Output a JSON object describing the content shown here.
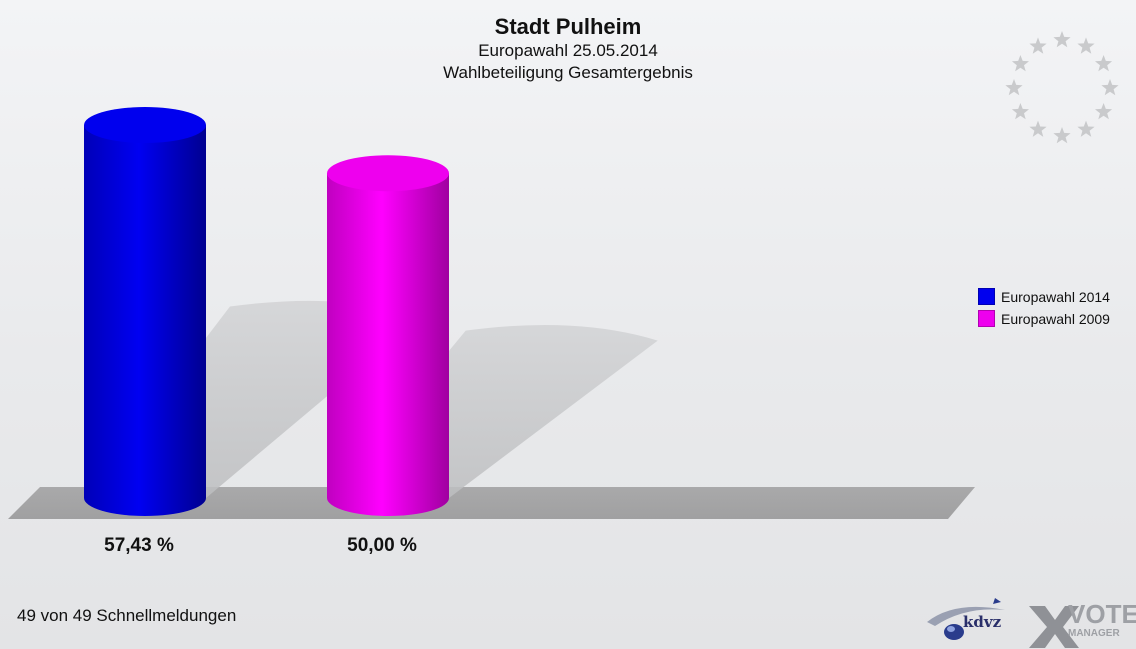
{
  "header": {
    "title": "Stadt Pulheim",
    "subtitle_1": "Europawahl 25.05.2014",
    "subtitle_2": "Wahlbeteiligung Gesamtergebnis"
  },
  "chart_data": {
    "type": "bar",
    "title": "Stadt Pulheim",
    "subtitle": "Europawahl 25.05.2014 — Wahlbeteiligung Gesamtergebnis",
    "categories": [
      "Europawahl 2014",
      "Europawahl 2009"
    ],
    "values": [
      57.43,
      50.0
    ],
    "value_labels": [
      "57,43 %",
      "50,00 %"
    ],
    "colors": [
      "#0000ee",
      "#ee00ee"
    ],
    "xlabel": "",
    "ylabel": "",
    "ylim": [
      0,
      57.43
    ],
    "legend": "right",
    "grid": false,
    "style": "3d-cylinder"
  },
  "legend": {
    "items": [
      {
        "label": "Europawahl 2014",
        "color": "#0000ee"
      },
      {
        "label": "Europawahl 2009",
        "color": "#ee00ee"
      }
    ]
  },
  "footer": {
    "status_text": "49 von 49 Schnellmeldungen"
  },
  "logos": {
    "kdvz_text": "kdvz",
    "vote_text": "VOTE",
    "manager_text": "MANAGER",
    "eu_stars_icon": "eu-stars-icon"
  }
}
